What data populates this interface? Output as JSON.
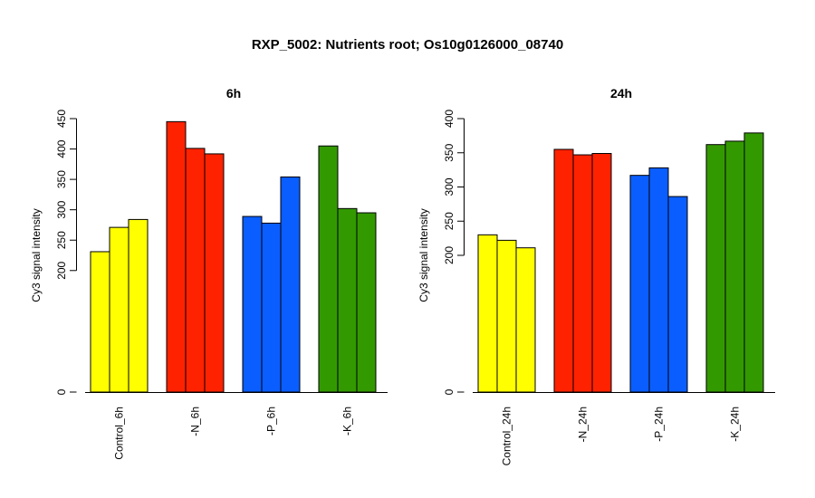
{
  "figure": {
    "title": "RXP_5002: Nutrients root; Os10g0126000_08740"
  },
  "colors": {
    "control": "#ffff00",
    "N": "#ff2200",
    "P": "#0a5eff",
    "K": "#339900"
  },
  "chart_data": [
    {
      "type": "bar",
      "title": "6h",
      "ylabel": "Cy3 signal intensity",
      "ylim": [
        0,
        450
      ],
      "yticks": [
        0,
        200,
        250,
        300,
        350,
        400,
        450
      ],
      "categories": [
        "Control_6h",
        "-N_6h",
        "-P_6h",
        "-K_6h"
      ],
      "groups": [
        {
          "category": "Control_6h",
          "color": "#ffff00",
          "values": [
            231,
            271,
            284
          ]
        },
        {
          "category": "-N_6h",
          "color": "#ff2200",
          "values": [
            445,
            401,
            392
          ]
        },
        {
          "category": "-P_6h",
          "color": "#0a5eff",
          "values": [
            289,
            278,
            354
          ]
        },
        {
          "category": "-K_6h",
          "color": "#339900",
          "values": [
            405,
            302,
            295
          ]
        }
      ]
    },
    {
      "type": "bar",
      "title": "24h",
      "ylabel": "Cy3 signal intensity",
      "ylim": [
        0,
        400
      ],
      "yticks": [
        0,
        200,
        250,
        300,
        350,
        400
      ],
      "categories": [
        "Control_24h",
        "-N_24h",
        "-P_24h",
        "-K_24h"
      ],
      "groups": [
        {
          "category": "Control_24h",
          "color": "#ffff00",
          "values": [
            230,
            222,
            211
          ]
        },
        {
          "category": "-N_24h",
          "color": "#ff2200",
          "values": [
            355,
            347,
            349
          ]
        },
        {
          "category": "-P_24h",
          "color": "#0a5eff",
          "values": [
            317,
            328,
            286
          ]
        },
        {
          "category": "-K_24h",
          "color": "#339900",
          "values": [
            362,
            367,
            379
          ]
        }
      ]
    }
  ]
}
